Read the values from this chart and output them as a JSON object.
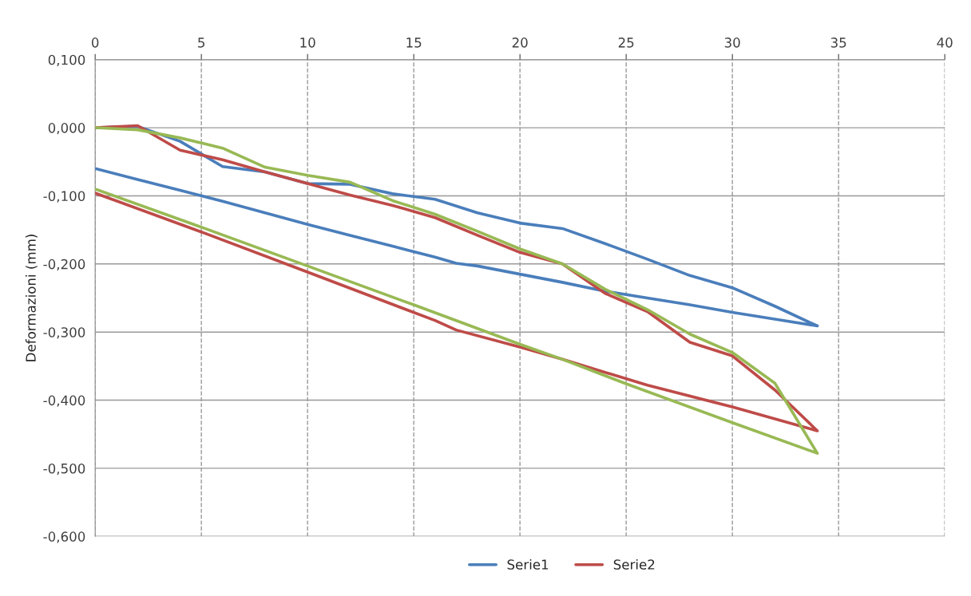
{
  "chart_data": {
    "type": "line",
    "ylabel": "Deformazioni (mm)",
    "xlim": [
      0,
      40
    ],
    "xticks": [
      0,
      5,
      10,
      15,
      20,
      25,
      30,
      35,
      40
    ],
    "ylim": [
      -0.6,
      0.1
    ],
    "yticks": [
      {
        "value": 0.1,
        "label": "0,100"
      },
      {
        "value": 0,
        "label": "0,000"
      },
      {
        "value": -0.1,
        "label": "-0,100"
      },
      {
        "value": -0.2,
        "label": "-0,200"
      },
      {
        "value": -0.3,
        "label": "-0,300"
      },
      {
        "value": -0.4,
        "label": "-0,400"
      },
      {
        "value": -0.5,
        "label": "-0,500"
      },
      {
        "value": -0.6,
        "label": "-0,600"
      }
    ],
    "grid": true,
    "legend": "bottom",
    "marker": "none",
    "line_style": "solid",
    "series": [
      {
        "name": "Serie1",
        "color": "#4a7ebb",
        "x": [
          0,
          2,
          4,
          6,
          8,
          10,
          12,
          14,
          16,
          18,
          20,
          22,
          24,
          26,
          28,
          30,
          32,
          34,
          32,
          30,
          28,
          26,
          24,
          22,
          20,
          18,
          17,
          16,
          14,
          12,
          10,
          8,
          6,
          4,
          2,
          0
        ],
        "values": [
          0,
          0.002,
          -0.02,
          -0.057,
          -0.065,
          -0.082,
          -0.083,
          -0.097,
          -0.105,
          -0.125,
          -0.14,
          -0.148,
          -0.17,
          -0.193,
          -0.217,
          -0.235,
          -0.262,
          -0.291,
          -0.281,
          -0.271,
          -0.26,
          -0.25,
          -0.24,
          -0.227,
          -0.215,
          -0.203,
          -0.199,
          -0.19,
          -0.174,
          -0.158,
          -0.142,
          -0.125,
          -0.108,
          -0.092,
          -0.076,
          -0.06
        ]
      },
      {
        "name": "Serie2",
        "color": "#be4b48",
        "x": [
          0,
          2,
          4,
          6,
          8,
          10,
          12,
          14,
          16,
          18,
          20,
          22,
          24,
          26,
          28,
          30,
          32,
          34,
          30,
          26,
          22,
          20,
          17,
          16,
          10,
          5,
          0
        ],
        "values": [
          0,
          0.003,
          -0.033,
          -0.047,
          -0.065,
          -0.082,
          -0.099,
          -0.114,
          -0.132,
          -0.158,
          -0.183,
          -0.2,
          -0.243,
          -0.27,
          -0.315,
          -0.335,
          -0.385,
          -0.445,
          -0.41,
          -0.378,
          -0.34,
          -0.322,
          -0.297,
          -0.283,
          -0.212,
          -0.153,
          -0.096
        ]
      },
      {
        "color": "#98b954",
        "x": [
          0,
          2,
          4,
          6,
          8,
          10,
          12,
          14,
          16,
          18,
          20,
          22,
          24,
          26,
          28,
          30,
          32,
          34,
          30,
          25,
          22,
          20,
          15,
          10,
          5,
          0
        ],
        "values": [
          0,
          -0.003,
          -0.015,
          -0.03,
          -0.058,
          -0.07,
          -0.08,
          -0.107,
          -0.127,
          -0.152,
          -0.178,
          -0.2,
          -0.237,
          -0.267,
          -0.303,
          -0.33,
          -0.375,
          -0.478,
          -0.433,
          -0.376,
          -0.34,
          -0.318,
          -0.26,
          -0.203,
          -0.146,
          -0.09
        ]
      }
    ]
  }
}
